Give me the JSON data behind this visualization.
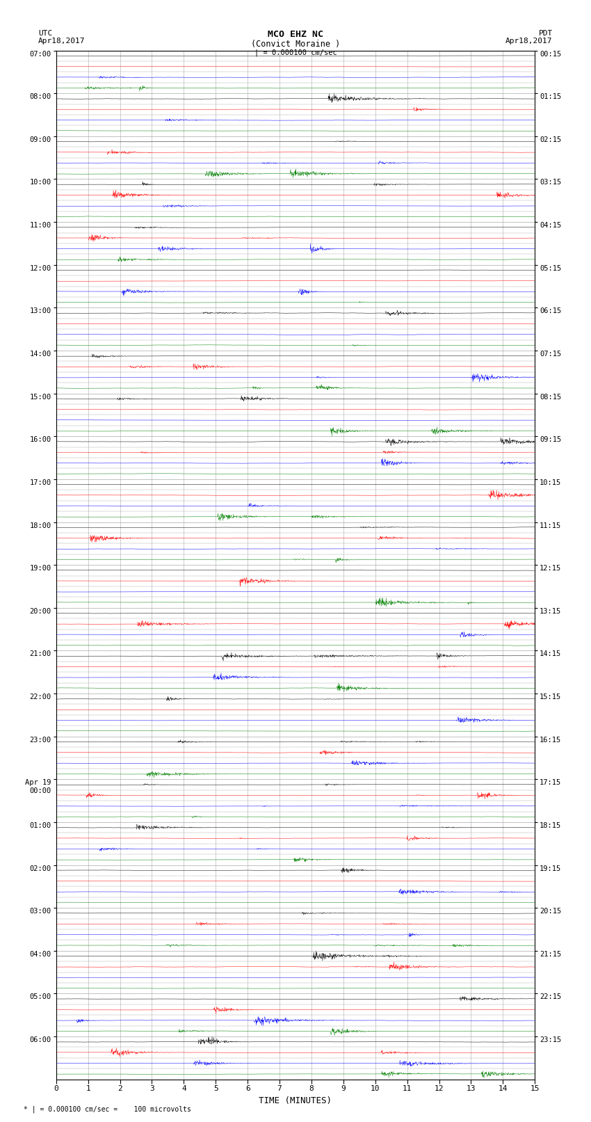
{
  "title_line1": "MCO EHZ NC",
  "title_line2": "(Convict Moraine )",
  "scale_label": "| = 0.000100 cm/sec",
  "utc_label": "UTC",
  "pdt_label": "PDT",
  "date_left": "Apr18,2017",
  "date_right": "Apr18,2017",
  "xlabel": "TIME (MINUTES)",
  "footnote": "* | = 0.000100 cm/sec =    100 microvolts",
  "utc_times_left": [
    "07:00",
    "08:00",
    "09:00",
    "10:00",
    "11:00",
    "12:00",
    "13:00",
    "14:00",
    "15:00",
    "16:00",
    "17:00",
    "18:00",
    "19:00",
    "20:00",
    "21:00",
    "22:00",
    "23:00",
    "Apr 19\n00:00",
    "01:00",
    "02:00",
    "03:00",
    "04:00",
    "05:00",
    "06:00"
  ],
  "pdt_times_right": [
    "00:15",
    "01:15",
    "02:15",
    "03:15",
    "04:15",
    "05:15",
    "06:15",
    "07:15",
    "08:15",
    "09:15",
    "10:15",
    "11:15",
    "12:15",
    "13:15",
    "14:15",
    "15:15",
    "16:15",
    "17:15",
    "18:15",
    "19:15",
    "20:15",
    "21:15",
    "22:15",
    "23:15"
  ],
  "n_hour_groups": 24,
  "rows_per_hour": 4,
  "n_cols": 1800,
  "x_min": 0,
  "x_max": 15,
  "colors": [
    "black",
    "red",
    "blue",
    "green"
  ],
  "bg_color": "#ffffff",
  "grid_color": "#aaaaaa",
  "noise_base": 0.012,
  "seed": 42
}
